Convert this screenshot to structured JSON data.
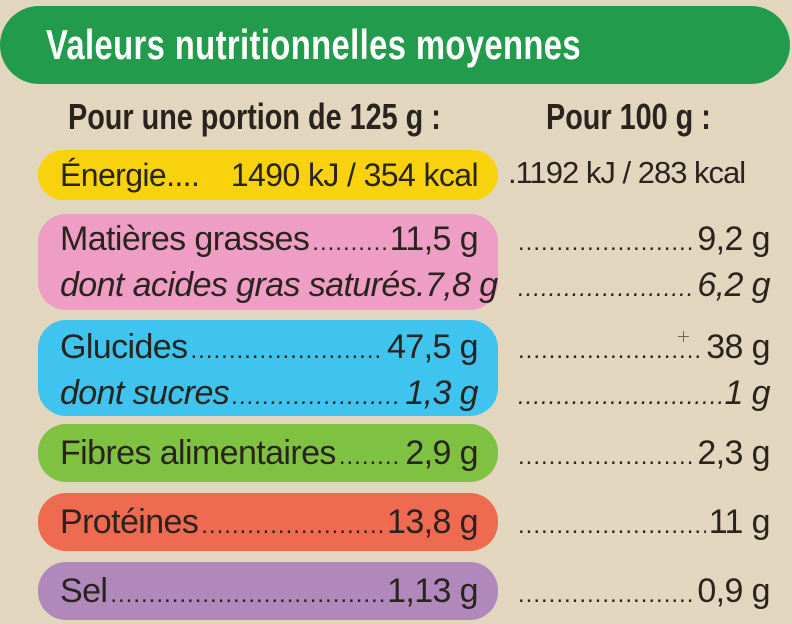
{
  "title": "Valeurs nutritionnelles moyennes",
  "headers": {
    "portion": "Pour une portion de 125 g :",
    "per100": "Pour 100 g :"
  },
  "colors": {
    "title_banner": "#229b4c",
    "energie": "#f8d20c",
    "matieres_grasses": "#ee9ec4",
    "glucides": "#3ec4ee",
    "fibres": "#7fc241",
    "proteines": "#ee6a50",
    "sel": "#b088bc",
    "background": "#e2d6bf"
  },
  "rows": {
    "energie": {
      "label": "Énergie....",
      "portion": "1490 kJ / 354 kcal",
      "per100": ".1192 kJ / 283 kcal"
    },
    "matieres_grasses": {
      "label": "Matières grasses",
      "portion": "11,5 g",
      "per100": "9,2 g"
    },
    "acides_gras_satures": {
      "label": "dont acides gras saturés.",
      "portion": "7,8 g",
      "per100": "6,2 g"
    },
    "glucides": {
      "label": "Glucides",
      "portion": "47,5 g",
      "per100": "38 g"
    },
    "sucres": {
      "label": "dont sucres",
      "portion": "1,3 g",
      "per100": "1 g"
    },
    "fibres": {
      "label": "Fibres alimentaires",
      "portion": "2,9 g",
      "per100": "2,3 g"
    },
    "proteines": {
      "label": "Protéines",
      "portion": "13,8 g",
      "per100": "11 g"
    },
    "sel": {
      "label": "Sel",
      "portion": "1,13 g",
      "per100": "0,9 g"
    }
  }
}
